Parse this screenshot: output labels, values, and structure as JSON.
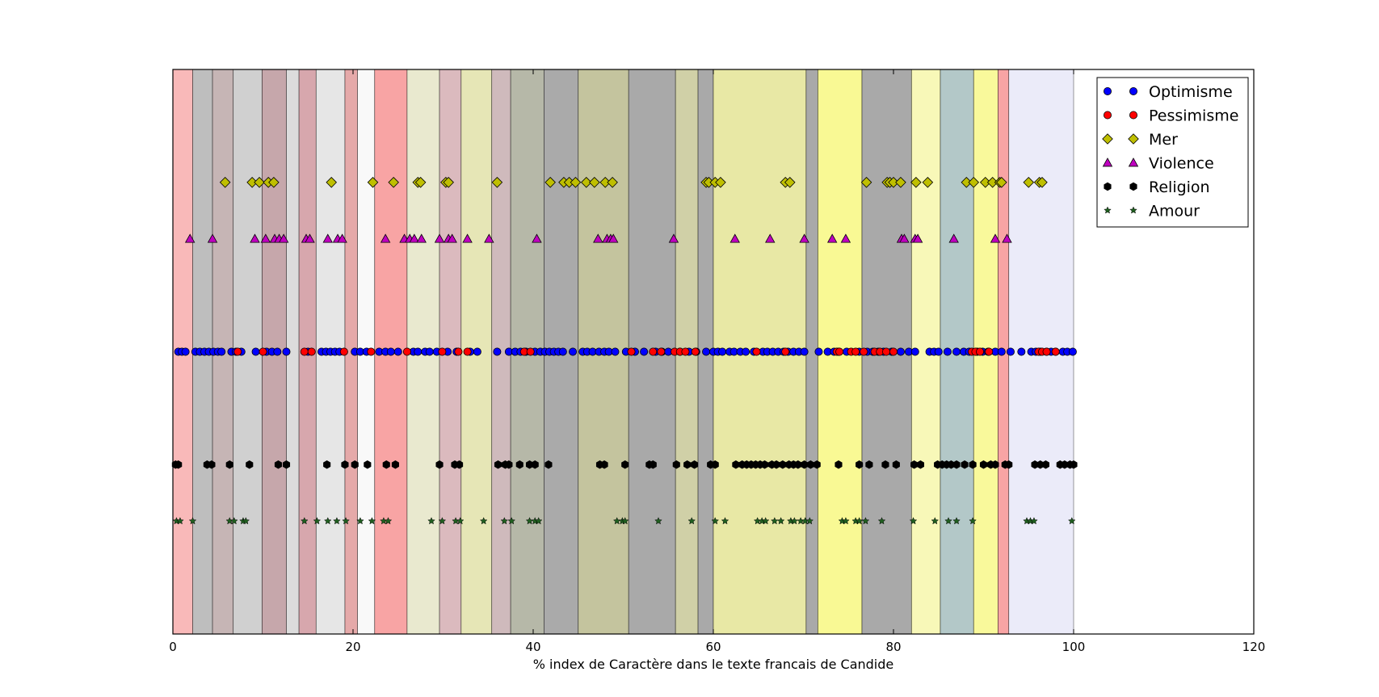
{
  "chart_data": {
    "type": "scatter",
    "title": "",
    "xlabel": "% index de Caractère dans le texte francais de Candide",
    "ylabel": "",
    "xlim": [
      0,
      120
    ],
    "ylim": [
      0,
      1
    ],
    "x_ticks": [
      "0",
      "20",
      "40",
      "60",
      "80",
      "100",
      "120"
    ],
    "legend_position": "top-right",
    "grid": false,
    "bands": [
      {
        "x0": 0.0,
        "x1": 2.2,
        "color": "#f7a1a1"
      },
      {
        "x0": 2.2,
        "x1": 4.4,
        "color": "#a8a8a8"
      },
      {
        "x0": 4.4,
        "x1": 6.7,
        "color": "#b39c9c"
      },
      {
        "x0": 6.7,
        "x1": 9.9,
        "color": "#c0c0c0"
      },
      {
        "x0": 9.9,
        "x1": 12.6,
        "color": "#b38a8f"
      },
      {
        "x0": 12.6,
        "x1": 14.0,
        "color": "#d0d0d0"
      },
      {
        "x0": 14.0,
        "x1": 15.9,
        "color": "#c98a91"
      },
      {
        "x0": 15.9,
        "x1": 19.1,
        "color": "#dedede"
      },
      {
        "x0": 19.1,
        "x1": 20.5,
        "color": "#dc8c8c"
      },
      {
        "x0": 20.5,
        "x1": 22.4,
        "color": "#f7f7f7"
      },
      {
        "x0": 22.4,
        "x1": 26.0,
        "color": "#f58686"
      },
      {
        "x0": 26.0,
        "x1": 29.6,
        "color": "#e1e1bf"
      },
      {
        "x0": 29.6,
        "x1": 32.0,
        "color": "#cfa3a8"
      },
      {
        "x0": 32.0,
        "x1": 35.4,
        "color": "#dede9e"
      },
      {
        "x0": 35.4,
        "x1": 37.5,
        "color": "#bfa3a6"
      },
      {
        "x0": 37.5,
        "x1": 41.2,
        "color": "#9ea08b"
      },
      {
        "x0": 41.2,
        "x1": 45.0,
        "color": "#8e8e8e"
      },
      {
        "x0": 45.0,
        "x1": 50.6,
        "color": "#b0b07e"
      },
      {
        "x0": 50.6,
        "x1": 55.8,
        "color": "#8c8c8c"
      },
      {
        "x0": 55.8,
        "x1": 58.3,
        "color": "#c0c08a"
      },
      {
        "x0": 58.3,
        "x1": 60.0,
        "color": "#8c8c8c"
      },
      {
        "x0": 60.0,
        "x1": 70.3,
        "color": "#e0e087"
      },
      {
        "x0": 70.3,
        "x1": 71.6,
        "color": "#8c8c8c"
      },
      {
        "x0": 71.6,
        "x1": 76.5,
        "color": "#f7f770"
      },
      {
        "x0": 76.5,
        "x1": 82.0,
        "color": "#8c8c8c"
      },
      {
        "x0": 82.0,
        "x1": 85.2,
        "color": "#f5f5a0"
      },
      {
        "x0": 85.2,
        "x1": 88.9,
        "color": "#9ab5b5"
      },
      {
        "x0": 88.9,
        "x1": 91.6,
        "color": "#f7f77a"
      },
      {
        "x0": 91.6,
        "x1": 92.8,
        "color": "#f58686"
      },
      {
        "x0": 92.8,
        "x1": 100.0,
        "color": "#e4e4f7"
      }
    ],
    "series": [
      {
        "name": "Optimisme",
        "y": 0.5,
        "marker": "circle",
        "color": "#0000ff",
        "x": [
          0.6,
          1.0,
          1.4,
          2.5,
          3.0,
          3.5,
          4.0,
          4.5,
          5.0,
          5.4,
          6.5,
          7.0,
          7.6,
          9.2,
          10.4,
          11.0,
          11.6,
          12.6,
          15.0,
          16.5,
          17.0,
          17.5,
          18.0,
          18.5,
          20.2,
          20.8,
          21.5,
          22.9,
          23.6,
          24.2,
          25.0,
          26.7,
          27.2,
          28.0,
          28.5,
          29.3,
          30.5,
          31.5,
          33.0,
          33.8,
          36.0,
          37.3,
          38.0,
          38.6,
          39.2,
          40.2,
          40.8,
          41.3,
          41.8,
          42.3,
          42.8,
          43.3,
          44.4,
          45.5,
          46.0,
          46.6,
          47.3,
          47.9,
          48.4,
          49.1,
          50.3,
          51.3,
          52.3,
          53.6,
          54.3,
          55.0,
          56.3,
          57.3,
          58.1,
          59.2,
          60.0,
          60.5,
          61.0,
          61.8,
          62.3,
          63.0,
          63.6,
          64.5,
          65.5,
          66.0,
          66.6,
          67.2,
          67.8,
          68.3,
          68.9,
          69.5,
          70.1,
          71.7,
          72.7,
          73.4,
          73.9,
          74.8,
          76.2,
          77.1,
          77.7,
          78.3,
          78.9,
          79.8,
          80.8,
          81.7,
          82.4,
          84.0,
          84.5,
          85.0,
          86.0,
          87.0,
          87.8,
          88.4,
          89.3,
          89.9,
          90.5,
          91.3,
          92.0,
          93.0,
          94.2,
          95.3,
          95.8,
          96.3,
          97.0,
          97.5,
          98.0,
          98.8,
          99.3,
          99.9
        ]
      },
      {
        "name": "Pessimisme",
        "y": 0.5,
        "marker": "circle",
        "color": "#ff0000",
        "x": [
          7.2,
          10.0,
          14.6,
          15.4,
          19.0,
          22.0,
          26.0,
          29.9,
          31.7,
          32.7,
          39.0,
          39.7,
          50.9,
          53.3,
          54.2,
          55.7,
          56.3,
          56.9,
          58.0,
          64.8,
          68.0,
          73.7,
          74.0,
          75.3,
          75.8,
          76.7,
          77.9,
          78.5,
          79.2,
          80.0,
          88.7,
          89.1,
          89.6,
          90.6,
          96.1,
          96.5,
          97.0,
          98.0
        ]
      },
      {
        "name": "Mer",
        "y": 0.8,
        "marker": "diamond",
        "color": "#bfbf00",
        "x": [
          5.8,
          8.8,
          9.6,
          10.6,
          11.2,
          17.6,
          22.2,
          24.5,
          27.2,
          27.5,
          30.3,
          30.6,
          36.0,
          41.9,
          43.4,
          44.0,
          44.7,
          45.9,
          46.8,
          48.0,
          48.8,
          59.2,
          59.5,
          60.2,
          60.8,
          68.0,
          68.5,
          77.0,
          79.3,
          79.6,
          80.0,
          80.8,
          82.5,
          83.8,
          88.1,
          88.9,
          90.2,
          91.0,
          91.8,
          92.0,
          95.0,
          96.2,
          96.5
        ]
      },
      {
        "name": "Violence",
        "y": 0.7,
        "marker": "triangle",
        "color": "#bf00bf",
        "x": [
          1.9,
          4.4,
          9.1,
          10.3,
          11.3,
          11.8,
          12.3,
          14.8,
          15.2,
          17.2,
          18.3,
          18.8,
          23.6,
          25.7,
          26.3,
          26.8,
          27.6,
          29.6,
          30.6,
          31.0,
          32.7,
          35.1,
          40.4,
          47.2,
          48.2,
          48.6,
          48.9,
          55.6,
          62.4,
          66.3,
          70.1,
          73.2,
          74.7,
          80.9,
          81.2,
          82.4,
          82.7,
          86.7,
          91.3,
          92.6
        ]
      },
      {
        "name": "Religion",
        "y": 0.3,
        "marker": "hexagon",
        "color": "#000000",
        "x": [
          0.3,
          0.6,
          3.8,
          4.3,
          6.3,
          8.5,
          11.7,
          12.6,
          17.1,
          19.1,
          20.2,
          21.6,
          23.7,
          24.7,
          29.6,
          31.3,
          31.8,
          36.1,
          36.9,
          37.3,
          38.5,
          39.6,
          40.2,
          41.7,
          47.4,
          47.9,
          50.2,
          52.9,
          53.3,
          55.9,
          57.1,
          57.9,
          59.7,
          60.2,
          62.5,
          63.2,
          63.7,
          64.2,
          64.7,
          65.2,
          65.7,
          66.5,
          67.0,
          67.7,
          68.4,
          68.9,
          69.4,
          70.1,
          70.8,
          71.5,
          73.9,
          76.2,
          77.3,
          79.1,
          80.3,
          82.3,
          83.0,
          84.9,
          85.4,
          85.9,
          86.4,
          87.0,
          87.9,
          88.8,
          90.0,
          90.8,
          91.3,
          92.4,
          92.8,
          95.7,
          96.3,
          96.9,
          98.5,
          99.0,
          99.6,
          100.0
        ]
      },
      {
        "name": "Amour",
        "y": 0.2,
        "marker": "star",
        "color": "#1f5f1f",
        "x": [
          0.4,
          0.8,
          2.2,
          6.3,
          6.8,
          7.8,
          8.1,
          14.6,
          16.0,
          17.2,
          18.2,
          19.2,
          20.8,
          22.1,
          23.4,
          23.9,
          28.7,
          29.9,
          31.4,
          31.9,
          34.5,
          36.8,
          37.6,
          39.6,
          40.2,
          40.6,
          49.3,
          49.9,
          50.2,
          53.9,
          57.6,
          60.2,
          61.3,
          64.9,
          65.4,
          65.8,
          66.8,
          67.5,
          68.6,
          69.0,
          69.7,
          70.2,
          70.7,
          74.3,
          74.7,
          75.8,
          76.2,
          76.9,
          78.7,
          82.2,
          84.6,
          86.1,
          87.0,
          88.8,
          94.8,
          95.2,
          95.6,
          99.8
        ]
      }
    ]
  }
}
